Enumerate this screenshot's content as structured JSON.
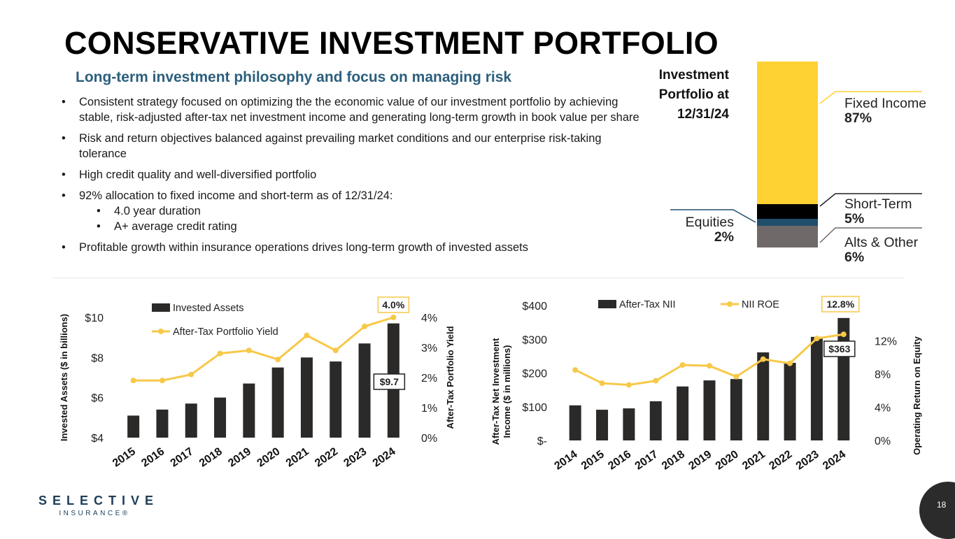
{
  "title": "CONSERVATIVE INVESTMENT PORTFOLIO",
  "subtitle": "Long-term investment philosophy and focus on managing risk",
  "bullets": [
    "Consistent strategy focused on optimizing the the economic value of our investment portfolio by achieving stable, risk-adjusted after-tax net investment income and generating long-term growth in book value per share",
    "Risk and return objectives balanced against prevailing market conditions and our enterprise risk-taking tolerance",
    "High credit quality and well-diversified portfolio",
    "92% allocation to fixed income and short-term as of 12/31/24:",
    "Profitable growth within insurance operations drives long-term growth of invested assets"
  ],
  "sub_bullets": [
    "4.0 year duration",
    "A+ average credit rating"
  ],
  "portfolio": {
    "label_lines": [
      "Investment",
      "Portfolio at",
      "12/31/24"
    ],
    "segments": [
      {
        "name": "Fixed Income",
        "pct": "87%",
        "value": 87,
        "color": "#ffd233"
      },
      {
        "name": "Short-Term",
        "pct": "5%",
        "value": 5,
        "color": "#000000"
      },
      {
        "name": "Equities",
        "pct": "2%",
        "value": 2,
        "color": "#1f4e6b"
      },
      {
        "name": "Alts & Other",
        "pct": "6%",
        "value": 6,
        "color": "#6f6a69"
      }
    ]
  },
  "logo": {
    "main": "SELECTIVE",
    "sub": "INSURANCE®"
  },
  "page_number": "18",
  "colors": {
    "bar": "#2b2a29",
    "line": "#f7c948",
    "subtitle": "#2c5f7c"
  },
  "chart_data": [
    {
      "type": "bar+line",
      "title": "",
      "categories": [
        "2015",
        "2016",
        "2017",
        "2018",
        "2019",
        "2020",
        "2021",
        "2022",
        "2023",
        "2024"
      ],
      "series": [
        {
          "name": "Invested Assets",
          "type": "bar",
          "axis": "left",
          "values": [
            5.1,
            5.4,
            5.7,
            6.0,
            6.7,
            7.5,
            8.0,
            7.8,
            8.7,
            9.7
          ]
        },
        {
          "name": "After-Tax Portfolio Yield",
          "type": "line",
          "axis": "right",
          "values": [
            1.9,
            1.9,
            2.1,
            2.8,
            2.9,
            2.6,
            3.4,
            2.9,
            3.7,
            4.0
          ]
        }
      ],
      "ylabel": "Invested Assets ($ in billions)",
      "y2label": "After-Tax Portfolio Yield",
      "ylim": [
        4,
        10
      ],
      "y2lim": [
        0,
        4
      ],
      "yticks": [
        "$4",
        "$6",
        "$8",
        "$10"
      ],
      "ytick_values": [
        4,
        6,
        8,
        10
      ],
      "y2ticks": [
        "0%",
        "1%",
        "2%",
        "3%",
        "4%"
      ],
      "y2tick_values": [
        0,
        1,
        2,
        3,
        4
      ],
      "annotations": {
        "bar_last": "$9.7",
        "line_last": "4.0%"
      },
      "legend": "top-left",
      "grid": false
    },
    {
      "type": "bar+line",
      "title": "",
      "categories": [
        "2014",
        "2015",
        "2016",
        "2017",
        "2018",
        "2019",
        "2020",
        "2021",
        "2022",
        "2023",
        "2024"
      ],
      "series": [
        {
          "name": "After-Tax NII",
          "type": "bar",
          "axis": "left",
          "values": [
            104,
            91,
            95,
            116,
            160,
            178,
            182,
            261,
            230,
            307,
            363
          ]
        },
        {
          "name": "NII ROE",
          "type": "line",
          "axis": "right",
          "values": [
            8.5,
            6.9,
            6.7,
            7.2,
            9.1,
            9.0,
            7.7,
            9.8,
            9.3,
            12.3,
            12.8
          ]
        }
      ],
      "ylabel": "After-Tax Net Investment Income ($ in millions)",
      "ylabel_lines": [
        "After-Tax Net Investment",
        "Income ($ in millions)"
      ],
      "y2label": "Operating Return on Equity",
      "ylim": [
        0,
        400
      ],
      "y2lim": [
        0,
        14
      ],
      "yticks": [
        "$-",
        "$100",
        "$200",
        "$300",
        "$400"
      ],
      "ytick_values": [
        0,
        100,
        200,
        300,
        400
      ],
      "y2ticks": [
        "0%",
        "4%",
        "8%",
        "12%"
      ],
      "y2tick_values": [
        0,
        4,
        8,
        12
      ],
      "annotations": {
        "bar_last": "$363",
        "line_last": "12.8%"
      },
      "legend": "top",
      "grid": false
    }
  ]
}
